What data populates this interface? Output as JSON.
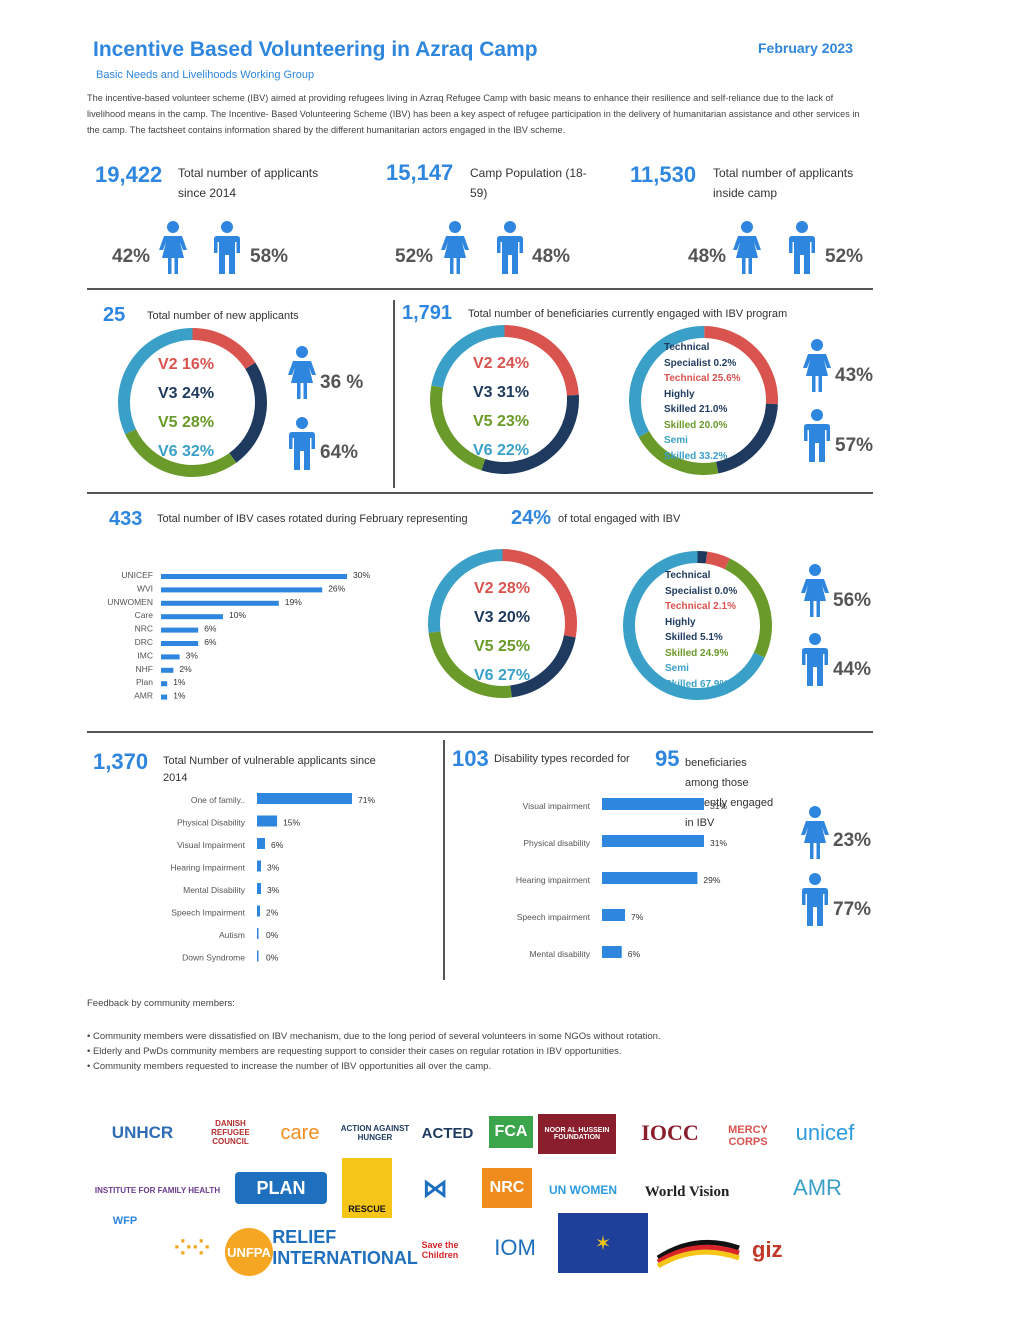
{
  "header": {
    "title": "Incentive Based Volunteering in Azraq Camp",
    "date": "February 2023",
    "subtitle": "Basic Needs and Livelihoods Working Group",
    "intro": "The incentive-based volunteer scheme (IBV) aimed at providing refugees living in Azraq Refugee Camp with basic means to enhance their resilience and self-reliance due to the lack of livelihood means in the camp. The Incentive- Based Volunteering Scheme (IBV) has been a key aspect of refugee participation in the delivery of humanitarian assistance and other services in the camp. The factsheet contains information shared by the different humanitarian actors engaged in the IBV scheme."
  },
  "colors": {
    "accent": "#2e86de",
    "red": "#d9534f",
    "navy": "#1e3a5f",
    "green": "#6a9a2a",
    "teal": "#3aa0c8"
  },
  "stats_top": [
    {
      "value": "19,422",
      "label": "Total number of applicants since 2014",
      "female": "42%",
      "male": "58%"
    },
    {
      "value": "15,147",
      "label": "Camp Population (18-59)",
      "female": "52%",
      "male": "48%"
    },
    {
      "value": "11,530",
      "label": "Total number of applicants inside camp",
      "female": "48%",
      "male": "52%"
    }
  ],
  "new_applicants": {
    "value": "25",
    "label": "Total number of new applicants",
    "villages": [
      "V2 16%",
      "V3 24%",
      "V5 28%",
      "V6 32%"
    ],
    "village_values": [
      16,
      24,
      28,
      32
    ],
    "female": "36 %",
    "male": "64%"
  },
  "engaged": {
    "value": "1,791",
    "label": "Total number of beneficiaries currently engaged with IBV program",
    "villages": [
      "V2 24%",
      "V3 31%",
      "V5 23%",
      "V6 22%"
    ],
    "village_values": [
      24,
      31,
      23,
      22
    ],
    "skills": [
      "Technical",
      "Specialist 0.2%",
      "Technical 25.6%",
      "Highly",
      "Skilled 21.0%",
      "Skilled 20.0%",
      "Semi",
      "Skilled 33.2%"
    ],
    "skill_values": [
      0.2,
      25.6,
      21.0,
      20.0,
      33.2
    ],
    "female": "43%",
    "male": "57%"
  },
  "rotated": {
    "value": "433",
    "label": "Total number of IBV cases rotated during February representing",
    "pct": "24%",
    "label2": "of total engaged with IBV",
    "villages": [
      "V2 28%",
      "V3 20%",
      "V5 25%",
      "V6 27%"
    ],
    "village_values": [
      28,
      20,
      25,
      27
    ],
    "skills": [
      "Technical",
      "Specialist 0.0%",
      "Technical 2.1%",
      "Highly",
      "Skilled 5.1%",
      "Skilled 24.9%",
      "Semi",
      "Skilled 67.9%"
    ],
    "skill_values": [
      0.0,
      2.1,
      5.1,
      24.9,
      67.9
    ],
    "female": "56%",
    "male": "44%"
  },
  "chart_data": [
    {
      "type": "bar",
      "categories": [
        "UNICEF",
        "WVI",
        "UNWOMEN",
        "Care",
        "NRC",
        "DRC",
        "IMC",
        "NHF",
        "Plan",
        "AMR"
      ],
      "values": [
        30,
        26,
        19,
        10,
        6,
        6,
        3,
        2,
        1,
        1
      ],
      "value_labels": [
        "30%",
        "26%",
        "19%",
        "10%",
        "6%",
        "6%",
        "3%",
        "2%",
        "1%",
        "1%"
      ]
    },
    {
      "type": "bar",
      "categories": [
        "One of family..",
        "Physical Disability",
        "Visual Impairment",
        "Hearing Impairment",
        "Mental Disability",
        "Speech Impairment",
        "Autism",
        "Down Syndrome"
      ],
      "values": [
        71,
        15,
        6,
        3,
        3,
        2,
        0,
        0
      ],
      "value_labels": [
        "71%",
        "15%",
        "6%",
        "3%",
        "3%",
        "2%",
        "0%",
        "0%"
      ]
    },
    {
      "type": "bar",
      "categories": [
        "Visual impairment",
        "Physical disability",
        "Hearing impairment",
        "Speech impairment",
        "Mental disability"
      ],
      "values": [
        31,
        31,
        29,
        7,
        6
      ],
      "value_labels": [
        "31%",
        "31%",
        "29%",
        "7%",
        "6%"
      ]
    }
  ],
  "vulnerable": {
    "value": "1,370",
    "label": "Total Number of vulnerable applicants since 2014"
  },
  "disability": {
    "value": "103",
    "label": "Disability types recorded for",
    "value2": "95",
    "label2": "beneficiaries among those currently engaged in IBV",
    "female": "23%",
    "male": "77%"
  },
  "feedback": {
    "heading": "Feedback by community members:",
    "items": [
      "• Community members were dissatisfied on IBV mechanism, due to the long period of several volunteers in some NGOs without rotation.",
      "• Elderly and PwDs community members are requesting support to consider their cases on regular rotation in IBV opportunities.",
      "• Community members requested to increase the number of IBV opportunities all over the camp."
    ]
  },
  "logos": [
    "UNHCR",
    "DANISH REFUGEE COUNCIL",
    "care",
    "ACTION AGAINST HUNGER",
    "ACTED",
    "FCA",
    "NOOR AL HUSSEIN FOUNDATION",
    "IOCC",
    "MERCY CORPS",
    "unicef",
    "INSTITUTE FOR FAMILY HEALTH",
    "PLAN",
    "RESCUE",
    "NRC",
    "UN WOMEN",
    "World Vision",
    "AMR",
    "WFP",
    "UNFPA",
    "RELIEF INTERNATIONAL",
    "Save the Children",
    "IOM",
    "giz"
  ]
}
